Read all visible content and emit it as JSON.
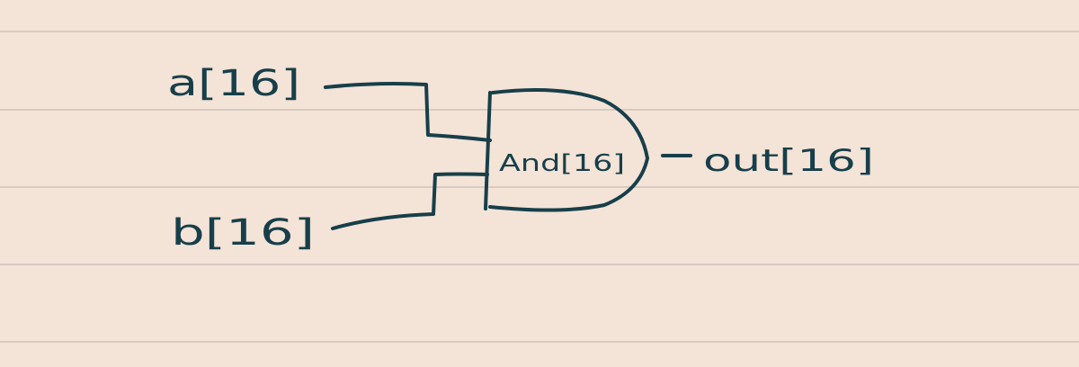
{
  "diagram": {
    "inputs": [
      {
        "id": "a",
        "label": "a[16]"
      },
      {
        "id": "b",
        "label": "b[16]"
      }
    ],
    "gate": {
      "type": "AND",
      "label": "And[16]"
    },
    "output": {
      "id": "out",
      "label": "out[16]"
    }
  },
  "colors": {
    "paper": "#f4e3d7",
    "rule_line": "#d9cbc1",
    "ink": "#173f4a"
  }
}
